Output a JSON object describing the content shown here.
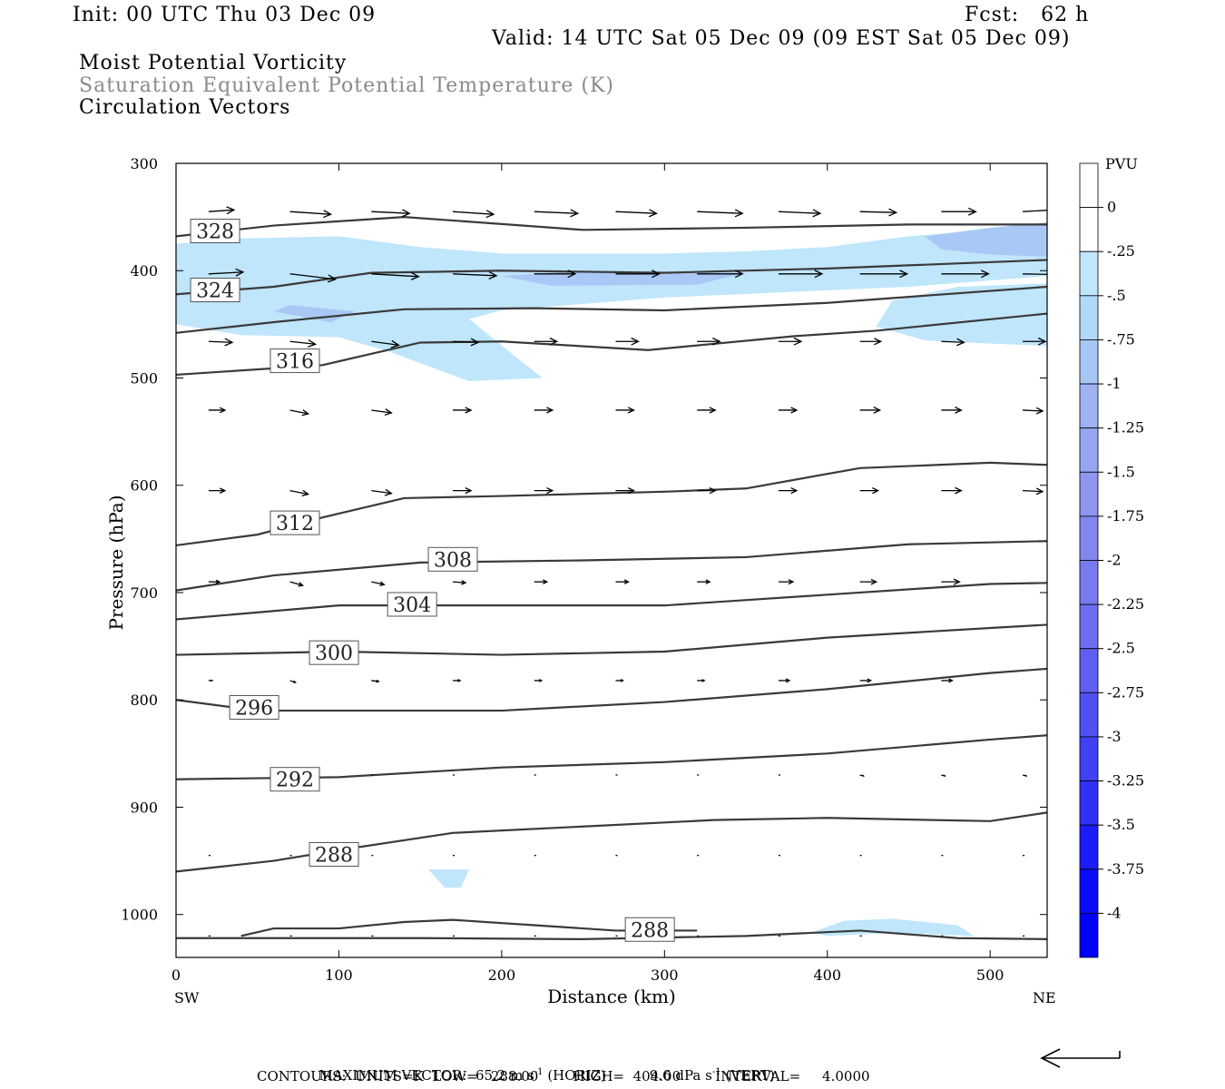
{
  "header": {
    "init": "Init: 00 UTC Thu 03 Dec 09",
    "fcst": "Fcst:   62 h",
    "valid": "Valid: 14 UTC Sat 05 Dec 09 (09 EST Sat 05 Dec 09)",
    "field1": "Moist Potential Vorticity",
    "field2": "Saturation Equivalent Potential Temperature (K)",
    "field3": "Circulation Vectors"
  },
  "footer": {
    "max_vector_label": "MAXIMUM VECTOR:",
    "max_horiz": "65.2 m s",
    "horiz_tag": "(HORIZ)",
    "max_vert": "9.6 dPa s",
    "vert_tag": "(VERT)",
    "exp": "-1",
    "contours": "CONTOURS:  UNITS=K  LOW=   288.00        HIGH=  404.00        INTERVAL=     4.0000"
  },
  "colors": {
    "contour": "#3a3a3a",
    "shade_light": "#bfe6fb",
    "shade_mid": "#a9c8f5"
  },
  "colorbar": {
    "title": "PVU",
    "labels": [
      "0",
      "-.25",
      "-.5",
      "-.75",
      "-1",
      "-1.25",
      "-1.5",
      "-1.75",
      "-2",
      "-2.25",
      "-2.5",
      "-2.75",
      "-3",
      "-3.25",
      "-3.5",
      "-3.75",
      "-4"
    ],
    "colors": [
      "#ffffff",
      "#ffffff",
      "#c0e6fc",
      "#b0d9f9",
      "#a8c6f5",
      "#9fb3f2",
      "#98a6f1",
      "#8f96ef",
      "#8585ee",
      "#7a7af0",
      "#6d6df2",
      "#5f5ff3",
      "#5050f5",
      "#4040f7",
      "#3030f9",
      "#1c1cfb",
      "#0a0afd",
      "#0000ff"
    ]
  },
  "chart_data": {
    "type": "cross-section",
    "xlabel": "Distance (km)",
    "ylabel": "Pressure (hPa)",
    "xlim": [
      0,
      535
    ],
    "ylim": [
      1040,
      300
    ],
    "x_ticks": [
      0,
      100,
      200,
      300,
      400,
      500
    ],
    "y_ticks": [
      300,
      400,
      500,
      600,
      700,
      800,
      900,
      1000
    ],
    "left_endpoint": "SW",
    "right_endpoint": "NE",
    "theta_e_contours": [
      {
        "level": "328",
        "points": [
          [
            0,
            368
          ],
          [
            60,
            358
          ],
          [
            140,
            350
          ],
          [
            250,
            362
          ],
          [
            350,
            360
          ],
          [
            450,
            357
          ],
          [
            535,
            357
          ]
        ],
        "label_at": [
          24,
          363
        ]
      },
      {
        "level": "324",
        "points": [
          [
            0,
            422
          ],
          [
            60,
            415
          ],
          [
            120,
            402
          ],
          [
            200,
            400
          ],
          [
            300,
            402
          ],
          [
            400,
            398
          ],
          [
            535,
            390
          ]
        ],
        "label_at": [
          24,
          418
        ]
      },
      {
        "level": "320",
        "points": [
          [
            0,
            458
          ],
          [
            60,
            448
          ],
          [
            140,
            436
          ],
          [
            220,
            435
          ],
          [
            300,
            437
          ],
          [
            400,
            430
          ],
          [
            535,
            415
          ]
        ],
        "label_at": null
      },
      {
        "level": "316",
        "points": [
          [
            0,
            497
          ],
          [
            90,
            488
          ],
          [
            150,
            467
          ],
          [
            200,
            466
          ],
          [
            290,
            474
          ],
          [
            380,
            461
          ],
          [
            430,
            456
          ],
          [
            535,
            440
          ]
        ],
        "label_at": [
          73,
          484
        ]
      },
      {
        "level": "312",
        "points": [
          [
            0,
            656
          ],
          [
            50,
            646
          ],
          [
            90,
            630
          ],
          [
            140,
            612
          ],
          [
            200,
            610
          ],
          [
            300,
            606
          ],
          [
            350,
            603
          ],
          [
            420,
            584
          ],
          [
            500,
            579
          ],
          [
            535,
            581
          ]
        ],
        "label_at": [
          73,
          635
        ]
      },
      {
        "level": "308",
        "points": [
          [
            0,
            698
          ],
          [
            60,
            684
          ],
          [
            150,
            672
          ],
          [
            250,
            670
          ],
          [
            350,
            667
          ],
          [
            450,
            655
          ],
          [
            535,
            652
          ]
        ],
        "label_at": [
          170,
          669
        ]
      },
      {
        "level": "304",
        "points": [
          [
            0,
            725
          ],
          [
            100,
            712
          ],
          [
            200,
            712
          ],
          [
            300,
            712
          ],
          [
            400,
            702
          ],
          [
            500,
            692
          ],
          [
            535,
            691
          ]
        ],
        "label_at": [
          145,
          711
        ]
      },
      {
        "level": "300",
        "points": [
          [
            0,
            758
          ],
          [
            100,
            755
          ],
          [
            200,
            758
          ],
          [
            300,
            755
          ],
          [
            400,
            742
          ],
          [
            500,
            733
          ],
          [
            535,
            730
          ]
        ],
        "label_at": [
          97,
          756
        ]
      },
      {
        "level": "296",
        "points": [
          [
            0,
            800
          ],
          [
            50,
            810
          ],
          [
            100,
            810
          ],
          [
            200,
            810
          ],
          [
            300,
            802
          ],
          [
            400,
            790
          ],
          [
            500,
            775
          ],
          [
            535,
            771
          ]
        ],
        "label_at": [
          48,
          807
        ]
      },
      {
        "level": "292",
        "points": [
          [
            0,
            874
          ],
          [
            100,
            872
          ],
          [
            200,
            863
          ],
          [
            300,
            858
          ],
          [
            400,
            850
          ],
          [
            500,
            837
          ],
          [
            535,
            833
          ]
        ],
        "label_at": [
          73,
          874
        ]
      },
      {
        "level": "288",
        "points": [
          [
            0,
            960
          ],
          [
            60,
            950
          ],
          [
            100,
            940
          ],
          [
            170,
            924
          ],
          [
            250,
            918
          ],
          [
            330,
            912
          ],
          [
            400,
            910
          ],
          [
            500,
            913
          ],
          [
            535,
            905
          ]
        ],
        "label_at": [
          97,
          944
        ]
      },
      {
        "level": "288",
        "points": [
          [
            40,
            1020
          ],
          [
            60,
            1013
          ],
          [
            100,
            1013
          ],
          [
            140,
            1007
          ],
          [
            170,
            1005
          ],
          [
            220,
            1010
          ],
          [
            270,
            1015
          ],
          [
            320,
            1015
          ]
        ],
        "label_at": [
          291,
          1014
        ]
      },
      {
        "level": "",
        "points": [
          [
            0,
            1022
          ],
          [
            150,
            1022
          ],
          [
            250,
            1023
          ],
          [
            350,
            1020
          ],
          [
            420,
            1015
          ],
          [
            480,
            1022
          ],
          [
            535,
            1023
          ]
        ],
        "label_at": null
      }
    ],
    "mpv_shading": [
      {
        "level": "-0.25",
        "points": [
          [
            0,
            375
          ],
          [
            40,
            370
          ],
          [
            100,
            368
          ],
          [
            150,
            378
          ],
          [
            200,
            384
          ],
          [
            300,
            384
          ],
          [
            350,
            382
          ],
          [
            400,
            378
          ],
          [
            450,
            368
          ],
          [
            500,
            362
          ],
          [
            535,
            358
          ],
          [
            535,
            470
          ],
          [
            500,
            468
          ],
          [
            460,
            465
          ],
          [
            430,
            452
          ],
          [
            440,
            428
          ],
          [
            480,
            415
          ],
          [
            535,
            412
          ],
          [
            535,
            405
          ],
          [
            450,
            415
          ],
          [
            300,
            425
          ],
          [
            200,
            437
          ],
          [
            180,
            445
          ],
          [
            210,
            482
          ],
          [
            225,
            500
          ],
          [
            180,
            503
          ],
          [
            130,
            475
          ],
          [
            100,
            462
          ],
          [
            40,
            460
          ],
          [
            0,
            450
          ]
        ]
      },
      {
        "level": "-0.25",
        "points": [
          [
            155,
            958
          ],
          [
            180,
            958
          ],
          [
            175,
            975
          ],
          [
            165,
            975
          ]
        ]
      },
      {
        "level": "-0.25",
        "points": [
          [
            390,
            1017
          ],
          [
            410,
            1006
          ],
          [
            440,
            1004
          ],
          [
            480,
            1010
          ],
          [
            490,
            1020
          ],
          [
            440,
            1017
          ],
          [
            400,
            1020
          ]
        ]
      },
      {
        "level": "-0.5",
        "points": [
          [
            460,
            368
          ],
          [
            500,
            360
          ],
          [
            535,
            355
          ],
          [
            535,
            387
          ],
          [
            500,
            385
          ],
          [
            470,
            380
          ]
        ]
      },
      {
        "level": "-0.5",
        "points": [
          [
            200,
            405
          ],
          [
            250,
            400
          ],
          [
            350,
            402
          ],
          [
            320,
            413
          ],
          [
            230,
            414
          ]
        ]
      },
      {
        "level": "-0.5",
        "points": [
          [
            60,
            438
          ],
          [
            70,
            432
          ],
          [
            110,
            438
          ],
          [
            95,
            448
          ]
        ]
      }
    ],
    "circulation_vectors": [
      {
        "p": 345,
        "x": [
          20,
          70,
          120,
          170,
          220,
          270,
          320,
          370,
          420,
          470,
          520
        ],
        "u": [
          28,
          45,
          42,
          45,
          48,
          45,
          50,
          46,
          40,
          38,
          35
        ],
        "w": [
          2,
          -3,
          -2,
          -3,
          -2,
          -2,
          -2,
          -2,
          -1,
          0,
          2
        ]
      },
      {
        "p": 403,
        "x": [
          20,
          70,
          120,
          170,
          220,
          270,
          320,
          370,
          420,
          470,
          520
        ],
        "u": [
          38,
          50,
          52,
          48,
          45,
          48,
          50,
          48,
          52,
          52,
          48
        ],
        "w": [
          2,
          -6,
          -3,
          -2,
          0,
          0,
          0,
          0,
          0,
          0,
          -1
        ]
      },
      {
        "p": 466,
        "x": [
          20,
          70,
          120,
          170,
          220,
          270,
          320,
          370,
          420,
          470,
          520
        ],
        "u": [
          26,
          28,
          30,
          28,
          25,
          25,
          25,
          25,
          23,
          25,
          25
        ],
        "w": [
          -1,
          -3,
          -4,
          -1,
          0,
          0,
          0,
          0,
          0,
          -1,
          0
        ]
      },
      {
        "p": 530,
        "x": [
          20,
          70,
          120,
          170,
          220,
          270,
          320,
          370,
          420,
          470,
          520
        ],
        "u": [
          18,
          20,
          22,
          20,
          20,
          20,
          20,
          20,
          22,
          22,
          22
        ],
        "w": [
          0,
          -4,
          -3,
          0,
          0,
          0,
          0,
          0,
          0,
          0,
          -1
        ]
      },
      {
        "p": 605,
        "x": [
          20,
          70,
          120,
          170,
          220,
          270,
          320,
          370,
          420,
          470,
          520
        ],
        "u": [
          18,
          20,
          22,
          20,
          20,
          20,
          20,
          20,
          20,
          22,
          22
        ],
        "w": [
          0,
          -4,
          -3,
          0,
          0,
          0,
          0,
          0,
          0,
          0,
          -1
        ]
      },
      {
        "p": 690,
        "x": [
          20,
          70,
          120,
          170,
          220,
          270,
          320,
          370,
          420,
          470,
          520
        ],
        "u": [
          12,
          14,
          14,
          14,
          14,
          14,
          14,
          16,
          18,
          20,
          0
        ],
        "w": [
          0,
          -4,
          -3,
          -1,
          0,
          0,
          0,
          0,
          0,
          0,
          0
        ]
      },
      {
        "p": 782,
        "x": [
          20,
          70,
          120,
          170,
          220,
          270,
          320,
          370,
          420,
          470,
          520
        ],
        "u": [
          4,
          6,
          8,
          8,
          8,
          8,
          8,
          12,
          12,
          12,
          0
        ],
        "w": [
          0,
          -2,
          -1,
          0,
          0,
          0,
          0,
          0,
          0,
          0,
          0
        ]
      },
      {
        "p": 870,
        "x": [
          70,
          120,
          170,
          220,
          270,
          320,
          370,
          420,
          470,
          520
        ],
        "u": [
          2,
          2,
          2,
          2,
          2,
          2,
          2,
          4,
          4,
          4
        ],
        "w": [
          0,
          0,
          0,
          0,
          0,
          0,
          0,
          -1,
          -1,
          -1
        ]
      },
      {
        "p": 945,
        "x": [
          20,
          70,
          120,
          170,
          220,
          270,
          320,
          370,
          420,
          470,
          520
        ],
        "u": [
          2,
          2,
          2,
          2,
          2,
          2,
          2,
          2,
          2,
          2,
          2
        ],
        "w": [
          0,
          0,
          0,
          0,
          0,
          0,
          0,
          0,
          0,
          0,
          0
        ]
      },
      {
        "p": 1020,
        "x": [
          20,
          70,
          120,
          170,
          220,
          270,
          320,
          370,
          420,
          470,
          520
        ],
        "u": [
          2,
          2,
          2,
          2,
          2,
          2,
          2,
          2,
          2,
          2,
          2
        ],
        "w": [
          0,
          0,
          0,
          0,
          0,
          0,
          0,
          0,
          0,
          0,
          0
        ]
      }
    ]
  }
}
